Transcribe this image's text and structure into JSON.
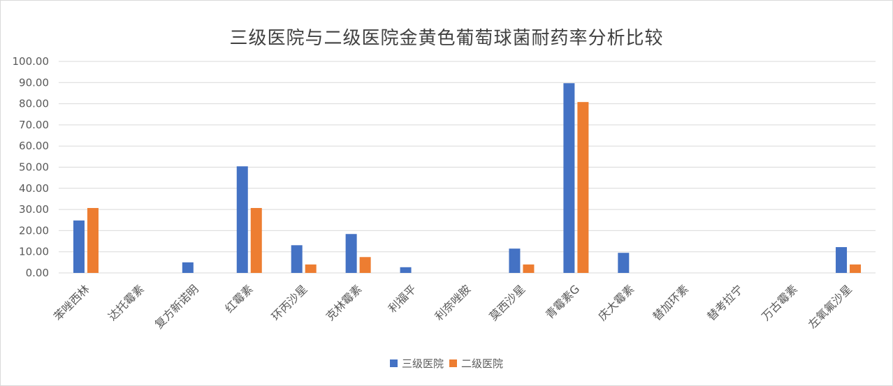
{
  "chart_data": {
    "type": "bar",
    "title": "三级医院与二级医院金黄色葡萄球菌耐药率分析比较",
    "categories": [
      "苯唑西林",
      "达托霉素",
      "复方新诺明",
      "红霉素",
      "环丙沙星",
      "克林霉素",
      "利福平",
      "利奈唑胺",
      "莫西沙星",
      "青霉素G",
      "庆大霉素",
      "替加环素",
      "替考拉宁",
      "万古霉素",
      "左氧氟沙星"
    ],
    "series": [
      {
        "name": "三级医院",
        "color": "#4472C4",
        "values": [
          24.8,
          0,
          5.0,
          50.4,
          13.1,
          18.4,
          2.7,
          0,
          11.5,
          89.7,
          9.5,
          0,
          0,
          0,
          12.2
        ]
      },
      {
        "name": "二级医院",
        "color": "#ED7D31",
        "values": [
          30.7,
          0,
          0,
          30.7,
          4.0,
          7.5,
          0,
          0,
          4.0,
          80.8,
          0,
          0,
          0,
          0,
          4.0
        ]
      }
    ],
    "y_ticks": [
      "0.00",
      "10.00",
      "20.00",
      "30.00",
      "40.00",
      "50.00",
      "60.00",
      "70.00",
      "80.00",
      "90.00",
      "100.00"
    ],
    "ylim": [
      0,
      100
    ],
    "grid": true,
    "legend_position": "bottom"
  }
}
